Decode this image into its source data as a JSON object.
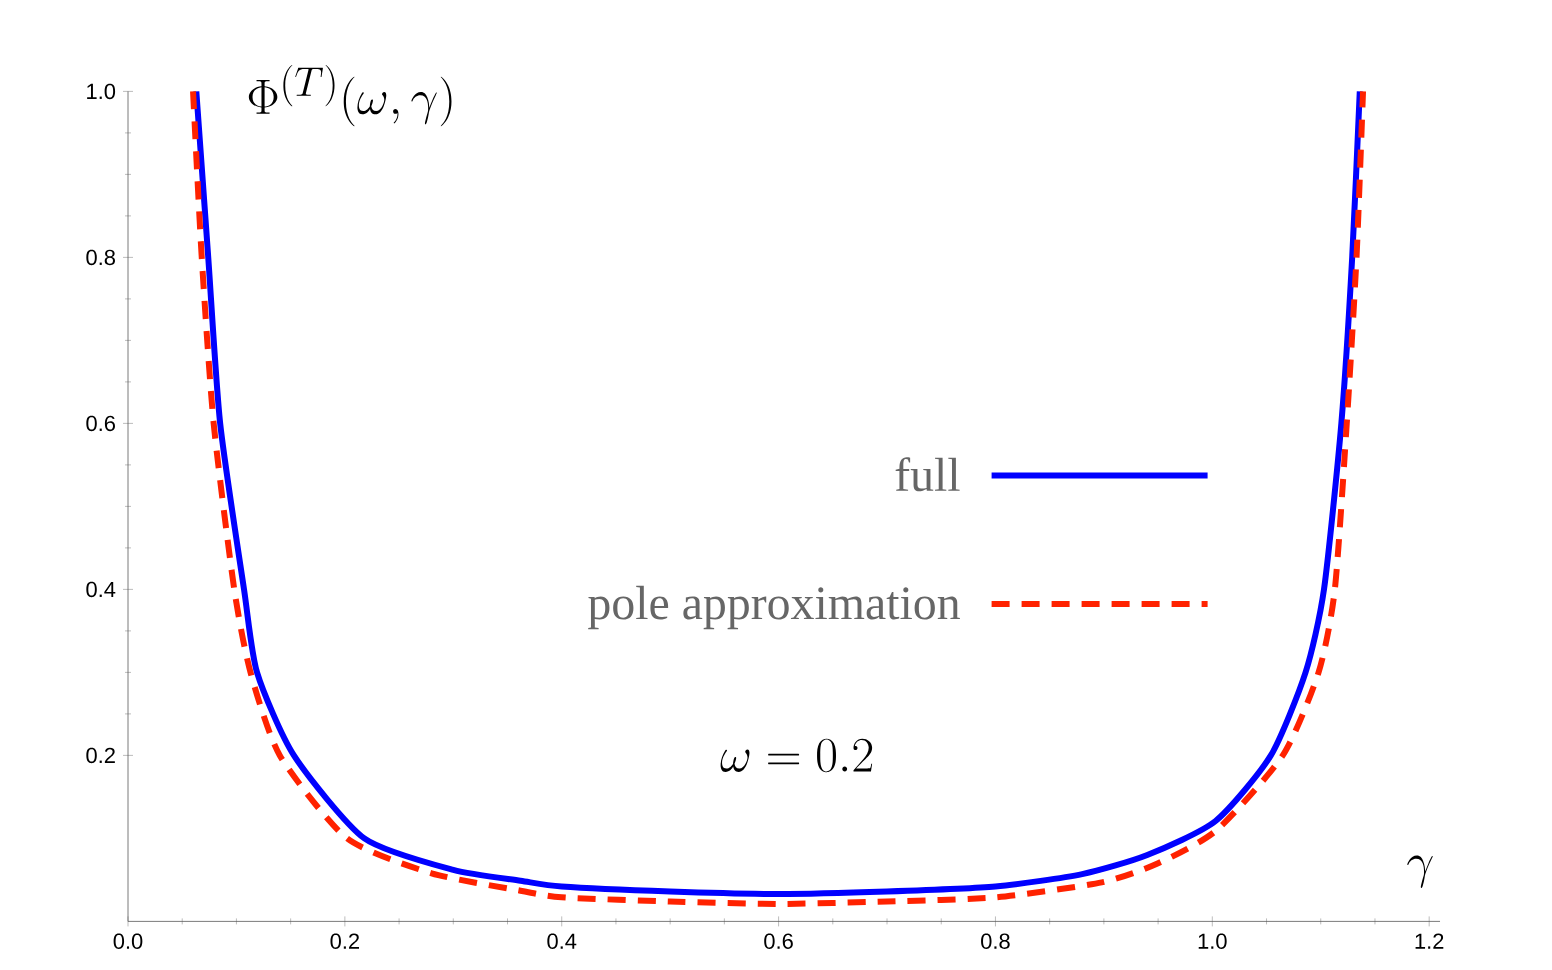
{
  "chart_data": {
    "type": "line",
    "ylabel": "\\Phi^{(T)}(\\omega,\\gamma)",
    "xlabel": "\\gamma",
    "annotations": [
      "\\omega = 0.2"
    ],
    "xlim": [
      0,
      1.21
    ],
    "ylim": [
      0,
      1.0
    ],
    "xticks": [
      {
        "value": 0,
        "label": "0.0"
      },
      0.2,
      0.4,
      0.6,
      0.8,
      {
        "value": 1,
        "label": "1.0"
      },
      1.2
    ],
    "yticks": [
      0.2,
      0.4,
      0.6,
      0.8,
      {
        "value": 1,
        "label": "1.0"
      }
    ],
    "legend": "right",
    "series": [
      {
        "name": "full",
        "color": "#0000ff",
        "line_style": "solid",
        "x": [
          0.063,
          0.074,
          0.085,
          0.107,
          0.119,
          0.153,
          0.218,
          0.3,
          0.362,
          0.4,
          0.5,
          0.6,
          0.7,
          0.8,
          0.88,
          0.94,
          1.003,
          1.054,
          1.086,
          1.103,
          1.119,
          1.129,
          1.136
        ],
        "values": [
          1.0,
          0.8,
          0.6,
          0.4,
          0.3,
          0.2,
          0.1,
          0.062,
          0.049,
          0.042,
          0.036,
          0.033,
          0.036,
          0.042,
          0.057,
          0.08,
          0.121,
          0.2,
          0.3,
          0.4,
          0.6,
          0.8,
          1.0
        ]
      },
      {
        "name": "pole approximation",
        "color": "#ff2200",
        "line_style": "dashed",
        "x": [
          0.06,
          0.068,
          0.079,
          0.098,
          0.113,
          0.14,
          0.202,
          0.28,
          0.362,
          0.4,
          0.5,
          0.6,
          0.7,
          0.8,
          0.898,
          0.95,
          1.004,
          1.065,
          1.098,
          1.113,
          1.124,
          1.133,
          1.139
        ],
        "values": [
          1.0,
          0.8,
          0.6,
          0.4,
          0.3,
          0.2,
          0.1,
          0.058,
          0.037,
          0.029,
          0.024,
          0.021,
          0.024,
          0.029,
          0.047,
          0.07,
          0.11,
          0.2,
          0.3,
          0.4,
          0.6,
          0.8,
          1.0
        ]
      }
    ]
  }
}
